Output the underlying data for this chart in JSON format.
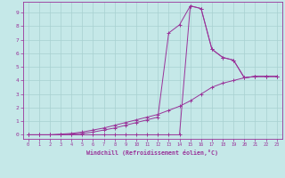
{
  "xlabel": "Windchill (Refroidissement éolien,°C)",
  "background_color": "#c5e8e8",
  "grid_color": "#a8d0d0",
  "line_color": "#993399",
  "xlim": [
    -0.5,
    23.5
  ],
  "ylim": [
    -0.3,
    9.8
  ],
  "xticks": [
    0,
    1,
    2,
    3,
    4,
    5,
    6,
    7,
    8,
    9,
    10,
    11,
    12,
    13,
    14,
    15,
    16,
    17,
    18,
    19,
    20,
    21,
    22,
    23
  ],
  "yticks": [
    0,
    1,
    2,
    3,
    4,
    5,
    6,
    7,
    8,
    9
  ],
  "line1_x": [
    0,
    1,
    2,
    3,
    4,
    5,
    6,
    7,
    8,
    9,
    10,
    11,
    12,
    13,
    14,
    15,
    16,
    17,
    18,
    19,
    20,
    21,
    22,
    23
  ],
  "line1_y": [
    0,
    0,
    0,
    0,
    0,
    0,
    0,
    0,
    0,
    0,
    0,
    0,
    0,
    0,
    0,
    9.5,
    9.3,
    6.3,
    5.7,
    5.5,
    4.2,
    4.3,
    4.3,
    4.3
  ],
  "line2_x": [
    0,
    1,
    2,
    3,
    4,
    5,
    6,
    7,
    8,
    9,
    10,
    11,
    12,
    13,
    14,
    15,
    16,
    17,
    18,
    19,
    20,
    21,
    22,
    23
  ],
  "line2_y": [
    0,
    0,
    0,
    0,
    0.05,
    0.1,
    0.2,
    0.35,
    0.5,
    0.7,
    0.9,
    1.1,
    1.3,
    7.5,
    8.1,
    9.5,
    9.3,
    6.3,
    5.7,
    5.5,
    4.2,
    4.3,
    4.3,
    4.3
  ],
  "line3_x": [
    0,
    1,
    2,
    3,
    4,
    5,
    6,
    7,
    8,
    9,
    10,
    11,
    12,
    13,
    14,
    15,
    16,
    17,
    18,
    19,
    20,
    21,
    22,
    23
  ],
  "line3_y": [
    0,
    0,
    0,
    0.05,
    0.1,
    0.2,
    0.35,
    0.5,
    0.7,
    0.9,
    1.1,
    1.3,
    1.5,
    1.8,
    2.1,
    2.5,
    3.0,
    3.5,
    3.8,
    4.0,
    4.2,
    4.3,
    4.3,
    4.3
  ]
}
